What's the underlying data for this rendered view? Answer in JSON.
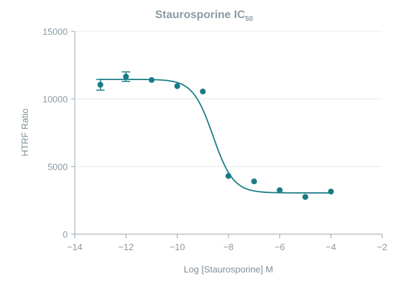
{
  "chart_data": {
    "type": "scatter",
    "title": "Staurosporine IC",
    "title_subscript": "50",
    "xlabel": "Log [Staurosporine] M",
    "ylabel": "HTRF Ratio",
    "xlim": [
      -14,
      -2
    ],
    "ylim": [
      0,
      15000
    ],
    "x_ticks": [
      -14,
      -12,
      -10,
      -8,
      -6,
      -4,
      -2
    ],
    "x_tick_labels": [
      "−14",
      "−12",
      "−10",
      "−8",
      "−6",
      "−4",
      "−2"
    ],
    "y_ticks": [
      0,
      5000,
      10000,
      15000
    ],
    "y_tick_labels": [
      "0",
      "5000",
      "10000",
      "15000"
    ],
    "grid": true,
    "series": [
      {
        "x": [
          -13,
          -12,
          -11,
          -10,
          -9,
          -8,
          -7,
          -6,
          -5,
          -4
        ],
        "y": [
          11050,
          11650,
          11400,
          10950,
          10550,
          4300,
          3900,
          3250,
          2750,
          3150
        ],
        "error": [
          400,
          350,
          0,
          0,
          0,
          0,
          0,
          0,
          0,
          0
        ]
      }
    ],
    "fit_curve": {
      "model": "4PL",
      "top": 11450,
      "bottom": 3050,
      "log_ic50": -8.6,
      "hill_slope": -1.1
    },
    "color": "#1a7b87"
  }
}
